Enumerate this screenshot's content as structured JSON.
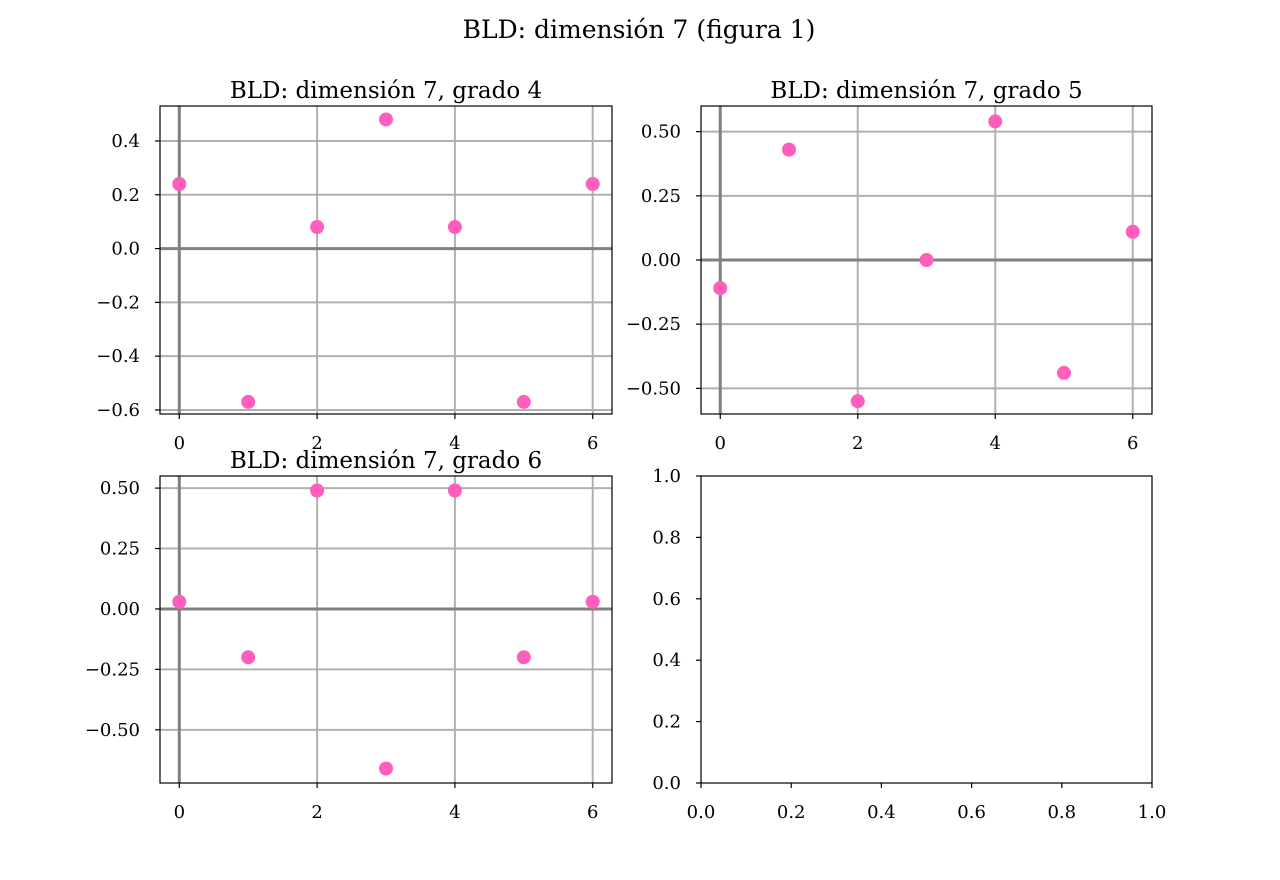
{
  "figure": {
    "suptitle": "BLD: dimensión 7 (figura 1)"
  },
  "colors": {
    "marker": "#ff5ebc",
    "grid": "#b0b0b0",
    "zero_axis": "#808080",
    "frame": "#000000"
  },
  "chart_data": [
    {
      "type": "scatter",
      "title": "BLD: dimensión 7, grado 4",
      "x": [
        0,
        1,
        2,
        3,
        4,
        5,
        6
      ],
      "y": [
        0.24,
        -0.57,
        0.08,
        0.48,
        0.08,
        -0.57,
        0.24
      ],
      "xlim": [
        -0.28,
        6.28
      ],
      "ylim": [
        -0.615,
        0.53
      ],
      "xticks": [
        0,
        2,
        4,
        6
      ],
      "xtick_labels": [
        "0",
        "2",
        "4",
        "6"
      ],
      "yticks": [
        -0.6,
        -0.4,
        -0.2,
        0.0,
        0.2,
        0.4
      ],
      "ytick_labels": [
        "−0.6",
        "−0.4",
        "−0.2",
        "0.0",
        "0.2",
        "0.4"
      ],
      "grid": true,
      "zero_lines": true
    },
    {
      "type": "scatter",
      "title": "BLD: dimensión 7, grado 5",
      "x": [
        0,
        1,
        2,
        3,
        4,
        5,
        6
      ],
      "y": [
        -0.11,
        0.43,
        -0.55,
        0.0,
        0.54,
        -0.44,
        0.11
      ],
      "xlim": [
        -0.28,
        6.28
      ],
      "ylim": [
        -0.6,
        0.6
      ],
      "xticks": [
        0,
        2,
        4,
        6
      ],
      "xtick_labels": [
        "0",
        "2",
        "4",
        "6"
      ],
      "yticks": [
        -0.5,
        -0.25,
        0.0,
        0.25,
        0.5
      ],
      "ytick_labels": [
        "−0.50",
        "−0.25",
        "0.00",
        "0.25",
        "0.50"
      ],
      "grid": true,
      "zero_lines": true
    },
    {
      "type": "scatter",
      "title": "BLD: dimensión 7, grado 6",
      "x": [
        0,
        1,
        2,
        3,
        4,
        5,
        6
      ],
      "y": [
        0.03,
        -0.2,
        0.49,
        -0.66,
        0.49,
        -0.2,
        0.03
      ],
      "xlim": [
        -0.28,
        6.28
      ],
      "ylim": [
        -0.72,
        0.55
      ],
      "xticks": [
        0,
        2,
        4,
        6
      ],
      "xtick_labels": [
        "0",
        "2",
        "4",
        "6"
      ],
      "yticks": [
        -0.5,
        -0.25,
        0.0,
        0.25,
        0.5
      ],
      "ytick_labels": [
        "−0.50",
        "−0.25",
        "0.00",
        "0.25",
        "0.50"
      ],
      "grid": true,
      "zero_lines": true
    },
    {
      "type": "scatter",
      "title": "",
      "x": [],
      "y": [],
      "xlim": [
        0,
        1
      ],
      "ylim": [
        0,
        1
      ],
      "xticks": [
        0,
        0.2,
        0.4,
        0.6,
        0.8,
        1.0
      ],
      "xtick_labels": [
        "0.0",
        "0.2",
        "0.4",
        "0.6",
        "0.8",
        "1.0"
      ],
      "yticks": [
        0,
        0.2,
        0.4,
        0.6,
        0.8,
        1.0
      ],
      "ytick_labels": [
        "0.0",
        "0.2",
        "0.4",
        "0.6",
        "0.8",
        "1.0"
      ],
      "grid": false,
      "zero_lines": false
    }
  ]
}
